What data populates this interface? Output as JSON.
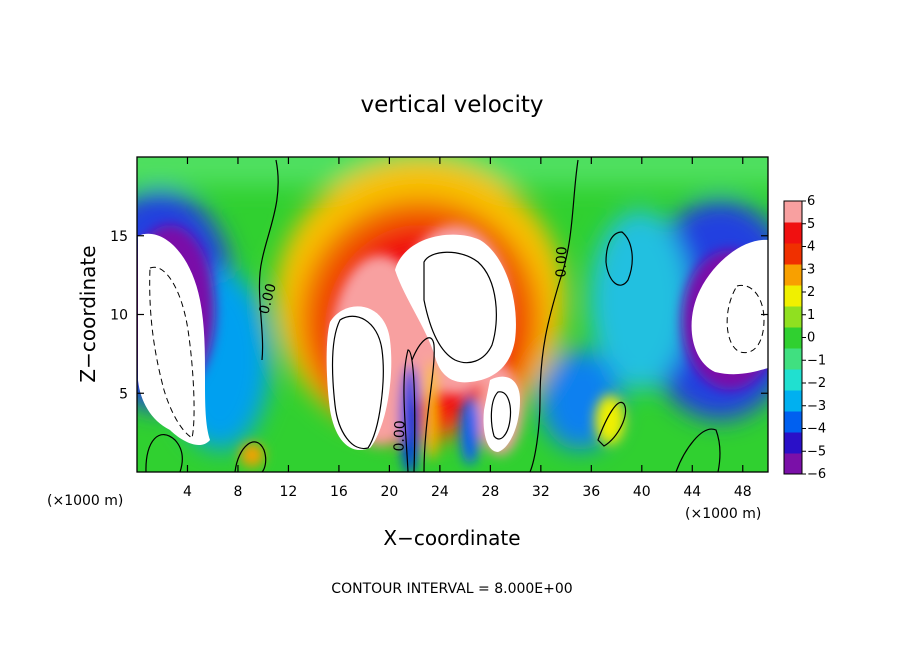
{
  "chart_data": {
    "type": "heatmap",
    "title": "vertical velocity",
    "xlabel": "X−coordinate",
    "ylabel": "Z−coordinate",
    "x_unit_label": "(×1000 m)",
    "x_unit_label_right": "(×1000 m)",
    "footer": "CONTOUR INTERVAL = 8.000E+00",
    "xlim": [
      0,
      50
    ],
    "ylim": [
      0,
      20
    ],
    "x_ticks": [
      4,
      8,
      12,
      16,
      20,
      24,
      28,
      32,
      36,
      40,
      44,
      48
    ],
    "y_ticks": [
      5,
      10,
      15
    ],
    "colorbar": {
      "ticks": [
        "6",
        "5",
        "4",
        "3",
        "2",
        "1",
        "0",
        "−1",
        "−2",
        "−3",
        "−4",
        "−5",
        "−6"
      ],
      "range": [
        -6,
        6
      ],
      "colors": [
        "#7a10a8",
        "#2a10c8",
        "#0060f0",
        "#00b0f0",
        "#20e0d0",
        "#40e080",
        "#30d030",
        "#90e020",
        "#f0f000",
        "#f8a000",
        "#f03000",
        "#f01010",
        "#f8a0a0"
      ]
    },
    "contour_labels": [
      "0.00",
      "0.00",
      "0.00"
    ],
    "features": [
      {
        "kind": "updraft",
        "x": 19,
        "z": 5.5,
        "peak": 8
      },
      {
        "kind": "updraft",
        "x": 24,
        "z": 10,
        "peak": 8
      },
      {
        "kind": "updraft",
        "x": 29.5,
        "z": 3.5,
        "peak": 7
      },
      {
        "kind": "downdraft",
        "x": 3.5,
        "z": 9,
        "peak": -8
      },
      {
        "kind": "downdraft",
        "x": 46,
        "z": 11,
        "peak": -8
      },
      {
        "kind": "downdraft",
        "x": 21.3,
        "z": 4,
        "peak": -5
      }
    ]
  }
}
